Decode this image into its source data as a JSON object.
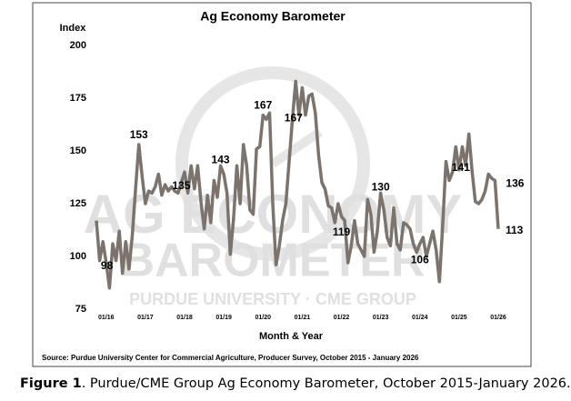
{
  "chart_data": {
    "type": "line",
    "title": "Ag Economy Barometer",
    "y_label": "Index",
    "x_label": "Month & Year",
    "source": "Source: Purdue University Center for Commercial Agriculture, Producer Survey, October 2015 - January 2026",
    "watermark": [
      "AG ECONOMY",
      "BAROMETER",
      "PURDUE UNIVERSITY · CME GROUP"
    ],
    "categories": [
      null,
      null,
      null,
      "01/16",
      null,
      null,
      null,
      null,
      null,
      null,
      null,
      null,
      null,
      null,
      null,
      "01/17",
      null,
      null,
      null,
      null,
      null,
      null,
      null,
      null,
      null,
      null,
      null,
      "01/18",
      null,
      null,
      null,
      null,
      null,
      null,
      null,
      null,
      null,
      null,
      null,
      "01/19",
      null,
      null,
      null,
      null,
      null,
      null,
      null,
      null,
      null,
      null,
      null,
      "01/20",
      null,
      null,
      null,
      null,
      null,
      null,
      null,
      null,
      null,
      null,
      null,
      "01/21",
      null,
      null,
      null,
      null,
      null,
      null,
      null,
      null,
      null,
      null,
      null,
      "01/22",
      null,
      null,
      null,
      null,
      null,
      null,
      null,
      null,
      null,
      null,
      null,
      "01/23",
      null,
      null,
      null,
      null,
      null,
      null,
      null,
      null,
      null,
      null,
      null,
      "01/24",
      null,
      null,
      null,
      null,
      null,
      null,
      null,
      null,
      null,
      null,
      null,
      "01/25",
      null,
      null,
      null,
      null,
      null,
      null,
      null,
      null,
      null,
      null,
      null,
      "01/26"
    ],
    "series": [
      {
        "name": "Ag Economy Barometer",
        "color": "#7b736c",
        "values": [
          117,
          98,
          107,
          97,
          85,
          106,
          98,
          112,
          92,
          107,
          94,
          110,
          132,
          153,
          138,
          125,
          131,
          130,
          133,
          139,
          129,
          134,
          131,
          133,
          131,
          130,
          135,
          140,
          130,
          143,
          132,
          143,
          126,
          113,
          129,
          116,
          136,
          128,
          143,
          139,
          130,
          101,
          118,
          143,
          125,
          153,
          143,
          122,
          120,
          151,
          152,
          167,
          165,
          168,
          125,
          96,
          105,
          117,
          125,
          145,
          165,
          183,
          167,
          180,
          167,
          176,
          177,
          168,
          148,
          135,
          132,
          124,
          123,
          116,
          125,
          119,
          117,
          97,
          105,
          117,
          106,
          103,
          100,
          127,
          120,
          102,
          112,
          130,
          122,
          109,
          105,
          123,
          106,
          103,
          116,
          115,
          113,
          106,
          102,
          106,
          109,
          100,
          106,
          112,
          103,
          88,
          115,
          145,
          136,
          140,
          152,
          141,
          152,
          143,
          158,
          140,
          126,
          125,
          127,
          131,
          139,
          137,
          136,
          113
        ],
        "value_labels": [
          null,
          "98",
          null,
          null,
          null,
          null,
          null,
          null,
          null,
          null,
          null,
          null,
          null,
          "153",
          null,
          null,
          null,
          null,
          null,
          null,
          null,
          null,
          null,
          null,
          null,
          null,
          "135",
          null,
          null,
          null,
          null,
          null,
          null,
          null,
          null,
          null,
          null,
          null,
          "143",
          null,
          null,
          null,
          null,
          null,
          null,
          null,
          null,
          null,
          null,
          null,
          null,
          "167",
          null,
          null,
          null,
          null,
          null,
          null,
          null,
          null,
          null,
          null,
          "167",
          null,
          null,
          null,
          null,
          null,
          null,
          null,
          null,
          null,
          null,
          null,
          null,
          "119",
          null,
          null,
          null,
          null,
          null,
          null,
          null,
          null,
          null,
          null,
          null,
          "130",
          null,
          null,
          null,
          null,
          null,
          null,
          null,
          null,
          null,
          null,
          null,
          "106",
          null,
          null,
          null,
          null,
          null,
          null,
          null,
          null,
          null,
          null,
          null,
          "141",
          null,
          null,
          null,
          null,
          null,
          null,
          null,
          null,
          null,
          null,
          "136",
          "113"
        ]
      }
    ],
    "ylim": [
      75,
      200
    ],
    "yticks": [
      75,
      100,
      125,
      150,
      175,
      200
    ],
    "grid": false
  },
  "caption": {
    "label": "Figure 1",
    "text": ". Purdue/CME Group Ag Economy Barometer, October 2015-January 2026."
  }
}
